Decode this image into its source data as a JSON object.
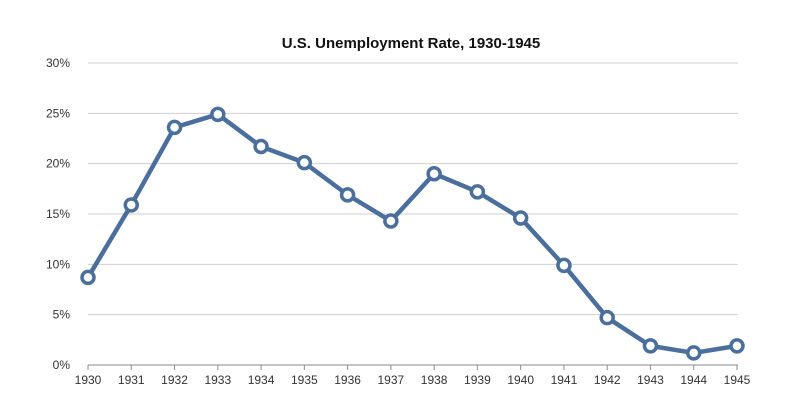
{
  "chart_data": {
    "type": "line",
    "title": "U.S. Unemployment Rate, 1930-1945",
    "xlabel": "",
    "ylabel": "",
    "x": [
      "1930",
      "1931",
      "1932",
      "1933",
      "1934",
      "1935",
      "1936",
      "1937",
      "1938",
      "1939",
      "1940",
      "1941",
      "1942",
      "1943",
      "1944",
      "1945"
    ],
    "series": [
      {
        "values": [
          8.7,
          15.9,
          23.6,
          24.9,
          21.7,
          20.1,
          16.9,
          14.3,
          19.0,
          17.2,
          14.6,
          9.9,
          4.7,
          1.9,
          1.2,
          1.9
        ]
      }
    ],
    "ylim": [
      0,
      30
    ],
    "yticks": [
      0,
      5,
      10,
      15,
      20,
      25,
      30
    ],
    "ytick_labels": [
      "0%",
      "5%",
      "10%",
      "15%",
      "20%",
      "25%",
      "30%"
    ],
    "grid": true,
    "legend": "none",
    "colors": {
      "line": "#4a6f9c",
      "marker_fill": "#ffffff",
      "grid": "#cfcfcf"
    }
  }
}
